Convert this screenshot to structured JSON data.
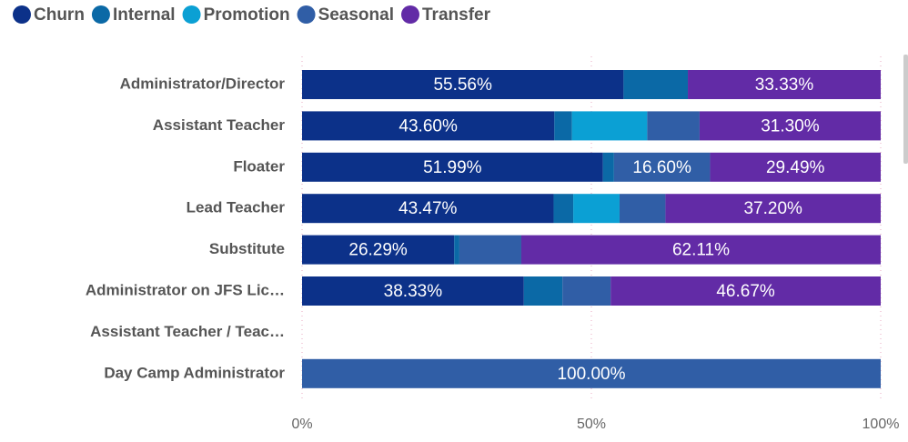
{
  "chart_data": {
    "type": "stacked-bar",
    "orientation": "horizontal",
    "categories": [
      "Administrator/Director",
      "Assistant Teacher",
      "Floater",
      "Lead Teacher",
      "Substitute",
      "Administrator on JFS Lic…",
      "Assistant Teacher / Teac…",
      "Day Camp Administrator"
    ],
    "series": [
      {
        "name": "Churn",
        "color": "#0c3189",
        "values": [
          55.56,
          43.6,
          51.99,
          43.47,
          26.29,
          38.33,
          null,
          null
        ],
        "value_labels": [
          "55.56%",
          "43.60%",
          "51.99%",
          "43.47%",
          "26.29%",
          "38.33%",
          null,
          null
        ]
      },
      {
        "name": "Internal",
        "color": "#0b69a6",
        "values": [
          11.11,
          3.05,
          1.92,
          3.4,
          0.9,
          6.67,
          null,
          null
        ]
      },
      {
        "name": "Promotion",
        "color": "#0ba0d4",
        "values": [
          null,
          13.0,
          null,
          8.0,
          null,
          null,
          null,
          null
        ]
      },
      {
        "name": "Seasonal",
        "color": "#305ea6",
        "values": [
          null,
          9.05,
          16.6,
          7.93,
          10.7,
          8.33,
          null,
          100
        ],
        "value_labels": [
          null,
          null,
          "16.60%",
          null,
          null,
          null,
          null,
          "100.00%"
        ]
      },
      {
        "name": "Transfer",
        "color": "#622ba6",
        "values": [
          33.33,
          31.3,
          29.49,
          37.2,
          62.11,
          46.67,
          null,
          null
        ],
        "value_labels": [
          "33.33%",
          "31.30%",
          "29.49%",
          "37.20%",
          "62.11%",
          "46.67%",
          null,
          null
        ]
      }
    ],
    "xlim": [
      0,
      100
    ],
    "xticks": [
      {
        "value": 0,
        "label": "0%"
      },
      {
        "value": 50,
        "label": "50%"
      },
      {
        "value": 100,
        "label": "100%"
      }
    ],
    "grid": true,
    "legend": "top-left"
  }
}
